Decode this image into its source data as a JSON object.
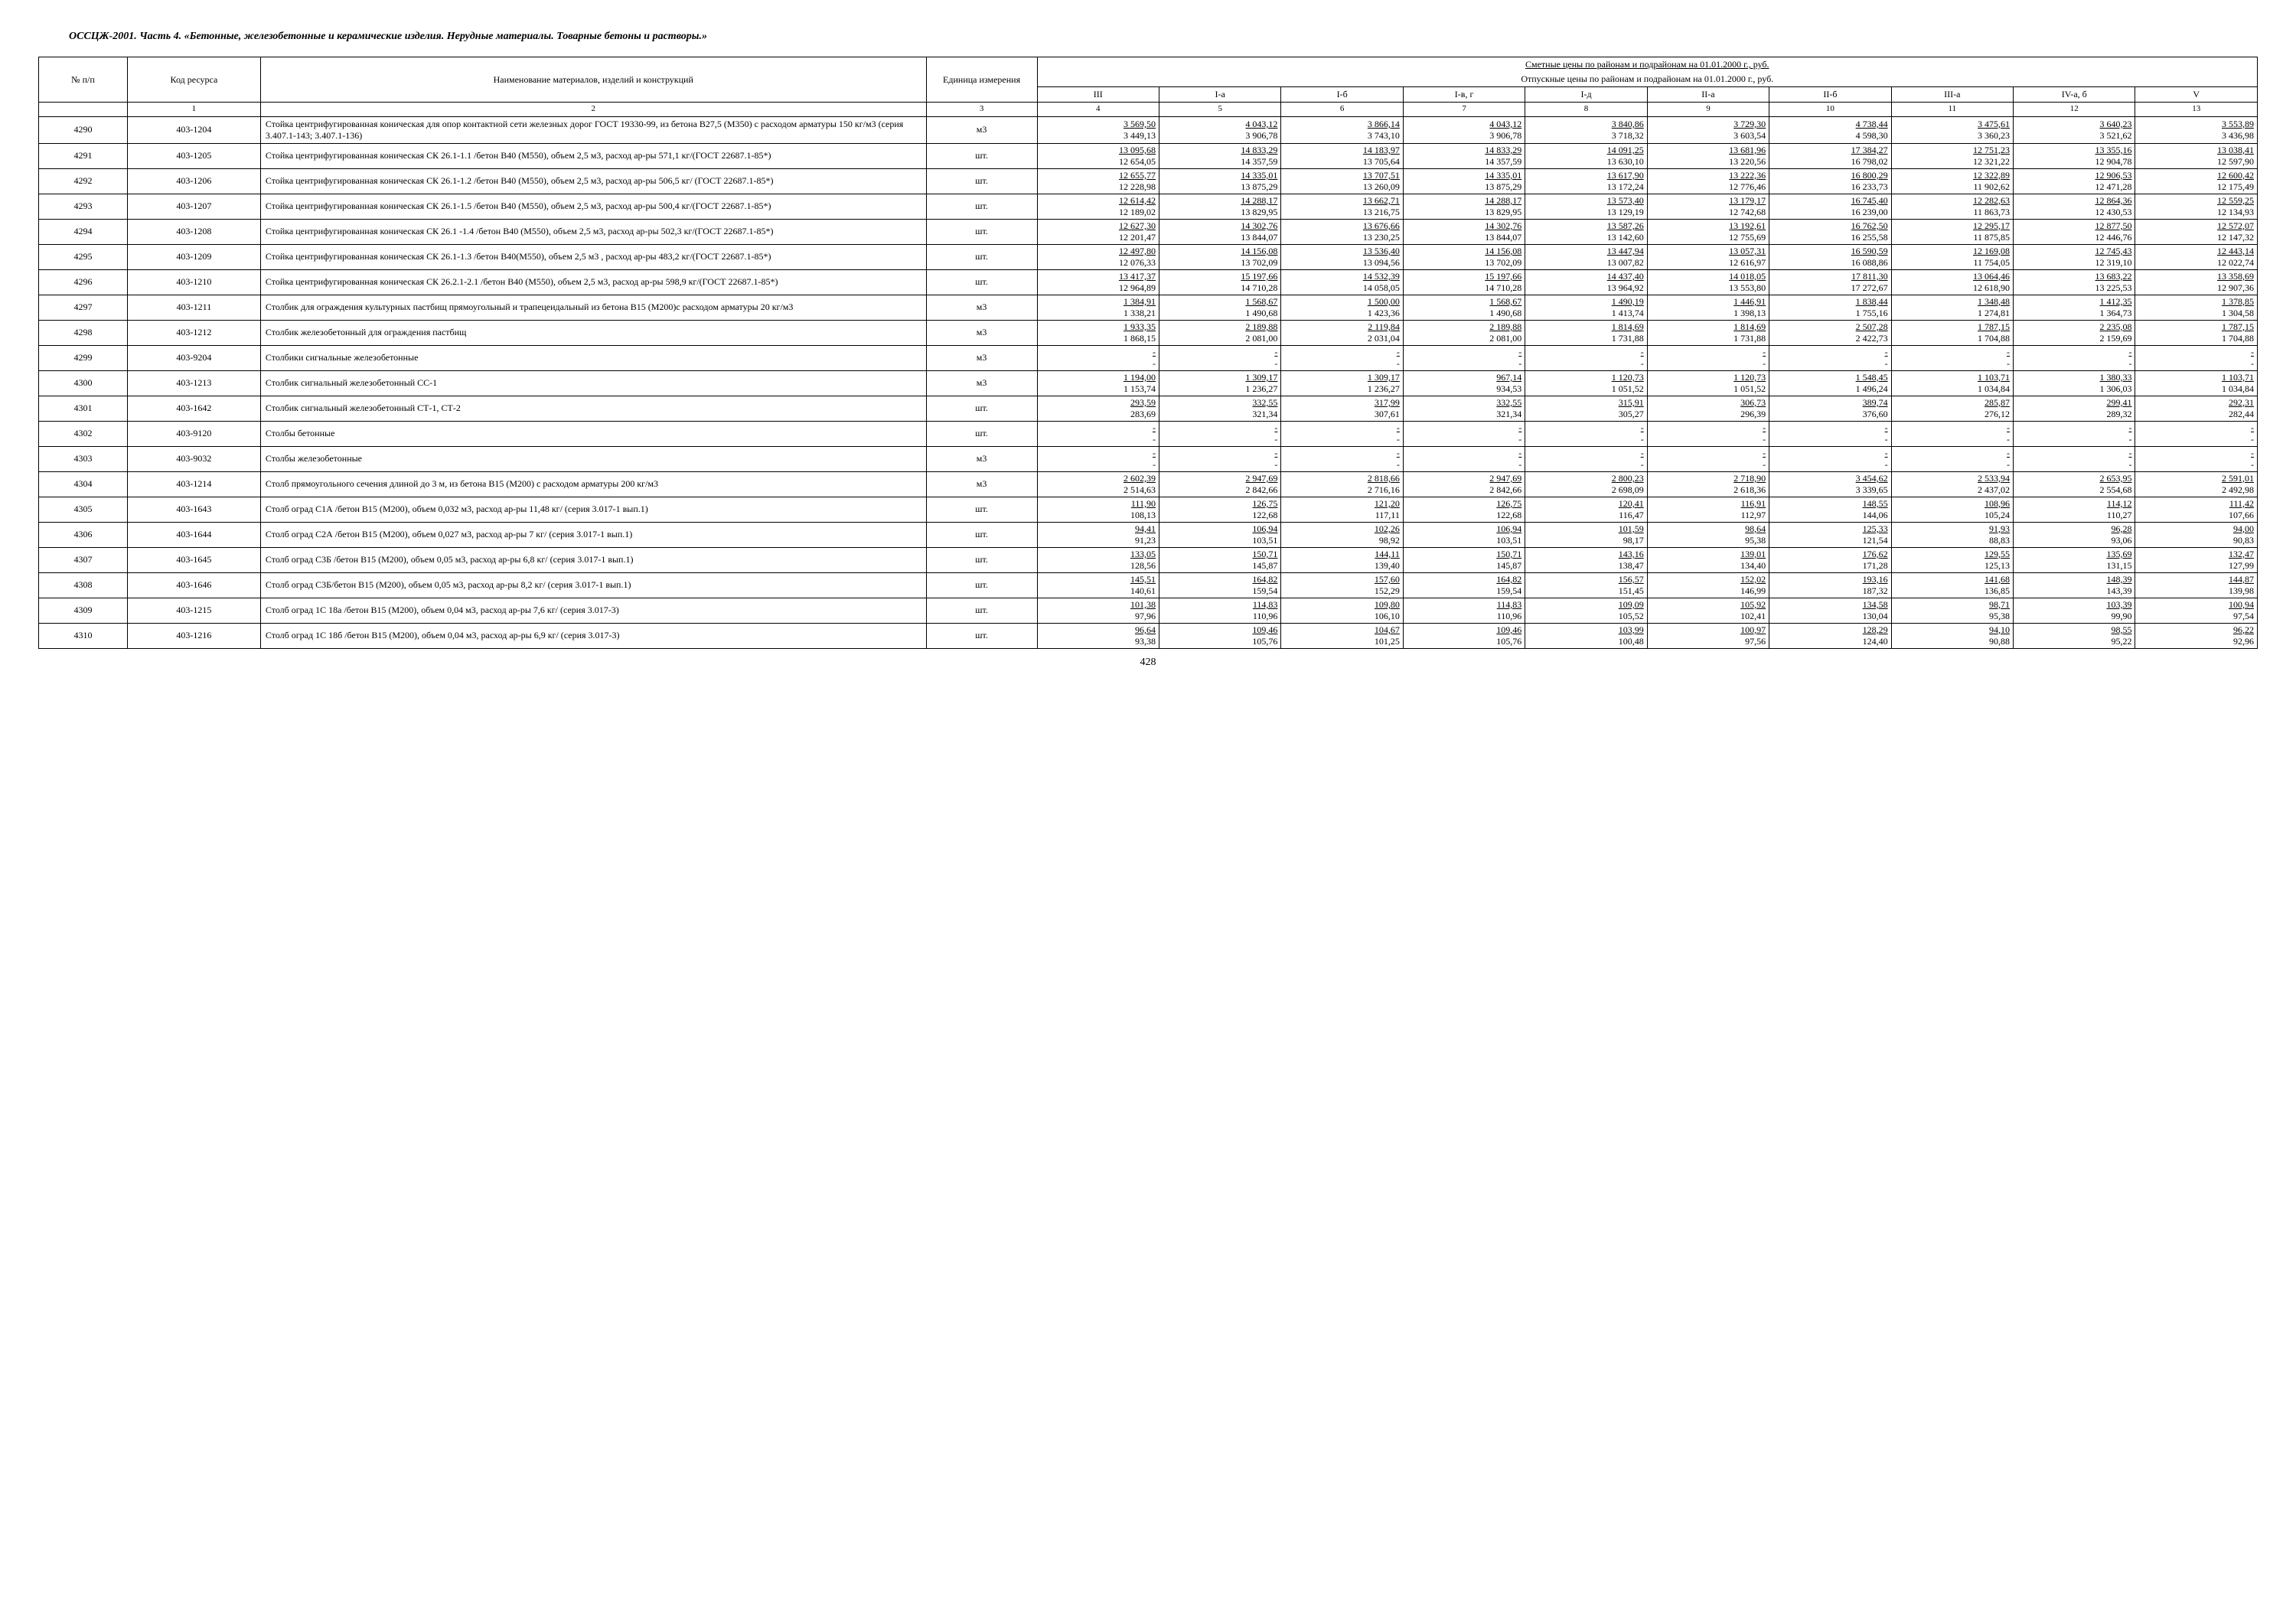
{
  "doc_title": "ОССЦЖ-2001. Часть 4. «Бетонные, железобетонные и керамические изделия. Нерудные материалы. Товарные бетоны и растворы.»",
  "header": {
    "col_num": "№ п/п",
    "col_code": "Код ресурса",
    "col_name": "Наименование материалов, изделий и конструкций",
    "col_unit": "Единица измерения",
    "prices_line1": "Сметные цены по районам и подрайонам на 01.01.2000 г., руб.",
    "prices_line2": "Отпускные цены по районам и подрайонам на 01.01.2000 г., руб.",
    "regions": [
      "III",
      "I-а",
      "I-б",
      "I-в, г",
      "I-д",
      "II-а",
      "II-б",
      "III-а",
      "IV-а, б",
      "V"
    ],
    "col_index": [
      "1",
      "2",
      "3",
      "4",
      "5",
      "6",
      "7",
      "8",
      "9",
      "10",
      "11",
      "12",
      "13"
    ]
  },
  "page_number": "428",
  "rows": [
    {
      "n": "4290",
      "code": "403-1204",
      "name": "Стойка центрифугированная коническая для опор контактной сети железных дорог ГОСТ 19330-99, из бетона В27,5 (М350) с расходом арматуры 150 кг/м3 (серия 3.407.1-143; 3.407.1-136)",
      "unit": "м3",
      "p": [
        [
          "3 569,50",
          "3 449,13"
        ],
        [
          "4 043,12",
          "3 906,78"
        ],
        [
          "3 866,14",
          "3 743,10"
        ],
        [
          "4 043,12",
          "3 906,78"
        ],
        [
          "3 840,86",
          "3 718,32"
        ],
        [
          "3 729,30",
          "3 603,54"
        ],
        [
          "4 738,44",
          "4 598,30"
        ],
        [
          "3 475,61",
          "3 360,23"
        ],
        [
          "3 640,23",
          "3 521,62"
        ],
        [
          "3 553,89",
          "3 436,98"
        ]
      ]
    },
    {
      "n": "4291",
      "code": "403-1205",
      "name": "Стойка центрифугированная коническая СК 26.1-1.1 /бетон В40 (М550), объем 2,5 м3, расход ар-ры 571,1 кг/(ГОСТ 22687.1-85*)",
      "unit": "шт.",
      "p": [
        [
          "13 095,68",
          "12 654,05"
        ],
        [
          "14 833,29",
          "14 357,59"
        ],
        [
          "14 183,97",
          "13 705,64"
        ],
        [
          "14 833,29",
          "14 357,59"
        ],
        [
          "14 091,25",
          "13 630,10"
        ],
        [
          "13 681,96",
          "13 220,56"
        ],
        [
          "17 384,27",
          "16 798,02"
        ],
        [
          "12 751,23",
          "12 321,22"
        ],
        [
          "13 355,16",
          "12 904,78"
        ],
        [
          "13 038,41",
          "12 597,90"
        ]
      ]
    },
    {
      "n": "4292",
      "code": "403-1206",
      "name": "Стойка центрифугированная коническая СК 26.1-1.2 /бетон В40 (М550), объем 2,5 м3, расход ар-ры 506,5 кг/ (ГОСТ 22687.1-85*)",
      "unit": "шт.",
      "p": [
        [
          "12 655,77",
          "12 228,98"
        ],
        [
          "14 335,01",
          "13 875,29"
        ],
        [
          "13 707,51",
          "13 260,09"
        ],
        [
          "14 335,01",
          "13 875,29"
        ],
        [
          "13 617,90",
          "13 172,24"
        ],
        [
          "13 222,36",
          "12 776,46"
        ],
        [
          "16 800,29",
          "16 233,73"
        ],
        [
          "12 322,89",
          "11 902,62"
        ],
        [
          "12 906,53",
          "12 471,28"
        ],
        [
          "12 600,42",
          "12 175,49"
        ]
      ]
    },
    {
      "n": "4293",
      "code": "403-1207",
      "name": "Стойка центрифугированная коническая СК 26.1-1.5 /бетон В40 (М550), объем 2,5 м3, расход ар-ры 500,4 кг/(ГОСТ 22687.1-85*)",
      "unit": "шт.",
      "p": [
        [
          "12 614,42",
          "12 189,02"
        ],
        [
          "14 288,17",
          "13 829,95"
        ],
        [
          "13 662,71",
          "13 216,75"
        ],
        [
          "14 288,17",
          "13 829,95"
        ],
        [
          "13 573,40",
          "13 129,19"
        ],
        [
          "13 179,17",
          "12 742,68"
        ],
        [
          "16 745,40",
          "16 239,00"
        ],
        [
          "12 282,63",
          "11 863,73"
        ],
        [
          "12 864,36",
          "12 430,53"
        ],
        [
          "12 559,25",
          "12 134,93"
        ]
      ]
    },
    {
      "n": "4294",
      "code": "403-1208",
      "name": "Стойка центрифугированная коническая СК 26.1 -1.4 /бетон В40 (М550), объем 2,5 м3, расход ар-ры 502,3 кг/(ГОСТ 22687.1-85*)",
      "unit": "шт.",
      "p": [
        [
          "12 627,30",
          "12 201,47"
        ],
        [
          "14 302,76",
          "13 844,07"
        ],
        [
          "13 676,66",
          "13 230,25"
        ],
        [
          "14 302,76",
          "13 844,07"
        ],
        [
          "13 587,26",
          "13 142,60"
        ],
        [
          "13 192,61",
          "12 755,69"
        ],
        [
          "16 762,50",
          "16 255,58"
        ],
        [
          "12 295,17",
          "11 875,85"
        ],
        [
          "12 877,50",
          "12 446,76"
        ],
        [
          "12 572,07",
          "12 147,32"
        ]
      ]
    },
    {
      "n": "4295",
      "code": "403-1209",
      "name": "Стойка центрифугированная коническая СК 26.1-1.3 /бетон В40(М550), объем 2,5 м3 , расход ар-ры 483,2 кг/(ГОСТ 22687.1-85*)",
      "unit": "шт.",
      "p": [
        [
          "12 497,80",
          "12 076,33"
        ],
        [
          "14 156,08",
          "13 702,09"
        ],
        [
          "13 536,40",
          "13 094,56"
        ],
        [
          "14 156,08",
          "13 702,09"
        ],
        [
          "13 447,94",
          "13 007,82"
        ],
        [
          "13 057,31",
          "12 616,97"
        ],
        [
          "16 590,59",
          "16 088,86"
        ],
        [
          "12 169,08",
          "11 754,05"
        ],
        [
          "12 745,43",
          "12 319,10"
        ],
        [
          "12 443,14",
          "12 022,74"
        ]
      ]
    },
    {
      "n": "4296",
      "code": "403-1210",
      "name": "Стойка центрифугированная коническая СК 26.2.1-2.1 /бетон В40 (М550), объем 2,5 м3, расход ар-ры 598,9 кг/(ГОСТ 22687.1-85*)",
      "unit": "шт.",
      "p": [
        [
          "13 417,37",
          "12 964,89"
        ],
        [
          "15 197,66",
          "14 710,28"
        ],
        [
          "14 532,39",
          "14 058,05"
        ],
        [
          "15 197,66",
          "14 710,28"
        ],
        [
          "14 437,40",
          "13 964,92"
        ],
        [
          "14 018,05",
          "13 553,80"
        ],
        [
          "17 811,30",
          "17 272,67"
        ],
        [
          "13 064,46",
          "12 618,90"
        ],
        [
          "13 683,22",
          "13 225,53"
        ],
        [
          "13 358,69",
          "12 907,36"
        ]
      ]
    },
    {
      "n": "4297",
      "code": "403-1211",
      "name": "Столбик для ограждения культурных пастбищ прямоугольный и трапецеидальный из бетона В15 (М200)с расходом арматуры 20 кг/м3",
      "unit": "м3",
      "p": [
        [
          "1 384,91",
          "1 338,21"
        ],
        [
          "1 568,67",
          "1 490,68"
        ],
        [
          "1 500,00",
          "1 423,36"
        ],
        [
          "1 568,67",
          "1 490,68"
        ],
        [
          "1 490,19",
          "1 413,74"
        ],
        [
          "1 446,91",
          "1 398,13"
        ],
        [
          "1 838,44",
          "1 755,16"
        ],
        [
          "1 348,48",
          "1 274,81"
        ],
        [
          "1 412,35",
          "1 364,73"
        ],
        [
          "1 378,85",
          "1 304,58"
        ]
      ]
    },
    {
      "n": "4298",
      "code": "403-1212",
      "name": "Столбик железобетонный для ограждения пастбищ",
      "unit": "м3",
      "p": [
        [
          "1 933,35",
          "1 868,15"
        ],
        [
          "2 189,88",
          "2 081,00"
        ],
        [
          "2 119,84",
          "2 031,04"
        ],
        [
          "2 189,88",
          "2 081,00"
        ],
        [
          "1 814,69",
          "1 731,88"
        ],
        [
          "1 814,69",
          "1 731,88"
        ],
        [
          "2 507,28",
          "2 422,73"
        ],
        [
          "1 787,15",
          "1 704,88"
        ],
        [
          "2 235,08",
          "2 159,69"
        ],
        [
          "1 787,15",
          "1 704,88"
        ]
      ]
    },
    {
      "n": "4299",
      "code": "403-9204",
      "name": "Столбики сигнальные железобетонные",
      "unit": "м3",
      "p": [
        [
          "-",
          "-"
        ],
        [
          "-",
          "-"
        ],
        [
          "-",
          "-"
        ],
        [
          "-",
          "-"
        ],
        [
          "-",
          "-"
        ],
        [
          "-",
          "-"
        ],
        [
          "-",
          "-"
        ],
        [
          "-",
          "-"
        ],
        [
          "-",
          "-"
        ],
        [
          "-",
          "-"
        ]
      ]
    },
    {
      "n": "4300",
      "code": "403-1213",
      "name": "Столбик сигнальный железобетонный СС-1",
      "unit": "м3",
      "p": [
        [
          "1 194,00",
          "1 153,74"
        ],
        [
          "1 309,17",
          "1 236,27"
        ],
        [
          "1 309,17",
          "1 236,27"
        ],
        [
          "967,14",
          "934,53"
        ],
        [
          "1 120,73",
          "1 051,52"
        ],
        [
          "1 120,73",
          "1 051,52"
        ],
        [
          "1 548,45",
          "1 496,24"
        ],
        [
          "1 103,71",
          "1 034,84"
        ],
        [
          "1 380,33",
          "1 306,03"
        ],
        [
          "1 103,71",
          "1 034,84"
        ]
      ]
    },
    {
      "n": "4301",
      "code": "403-1642",
      "name": "Столбик сигнальный железобетонный СТ-1, СТ-2",
      "unit": "шт.",
      "p": [
        [
          "293,59",
          "283,69"
        ],
        [
          "332,55",
          "321,34"
        ],
        [
          "317,99",
          "307,61"
        ],
        [
          "332,55",
          "321,34"
        ],
        [
          "315,91",
          "305,27"
        ],
        [
          "306,73",
          "296,39"
        ],
        [
          "389,74",
          "376,60"
        ],
        [
          "285,87",
          "276,12"
        ],
        [
          "299,41",
          "289,32"
        ],
        [
          "292,31",
          "282,44"
        ]
      ]
    },
    {
      "n": "4302",
      "code": "403-9120",
      "name": "Столбы бетонные",
      "unit": "шт.",
      "p": [
        [
          "-",
          "-"
        ],
        [
          "-",
          "-"
        ],
        [
          "-",
          "-"
        ],
        [
          "-",
          "-"
        ],
        [
          "-",
          "-"
        ],
        [
          "-",
          "-"
        ],
        [
          "-",
          "-"
        ],
        [
          "-",
          "-"
        ],
        [
          "-",
          "-"
        ],
        [
          "-",
          "-"
        ]
      ]
    },
    {
      "n": "4303",
      "code": "403-9032",
      "name": "Столбы железобетонные",
      "unit": "м3",
      "p": [
        [
          "-",
          "-"
        ],
        [
          "-",
          "-"
        ],
        [
          "-",
          "-"
        ],
        [
          "-",
          "-"
        ],
        [
          "-",
          "-"
        ],
        [
          "-",
          "-"
        ],
        [
          "-",
          "-"
        ],
        [
          "-",
          "-"
        ],
        [
          "-",
          "-"
        ],
        [
          "-",
          "-"
        ]
      ]
    },
    {
      "n": "4304",
      "code": "403-1214",
      "name": "Столб прямоугольного сечения длиной до 3 м, из бетона В15 (М200) с расходом арматуры 200 кг/м3",
      "unit": "м3",
      "p": [
        [
          "2 602,39",
          "2 514,63"
        ],
        [
          "2 947,69",
          "2 842,66"
        ],
        [
          "2 818,66",
          "2 716,16"
        ],
        [
          "2 947,69",
          "2 842,66"
        ],
        [
          "2 800,23",
          "2 698,09"
        ],
        [
          "2 718,90",
          "2 618,36"
        ],
        [
          "3 454,62",
          "3 339,65"
        ],
        [
          "2 533,94",
          "2 437,02"
        ],
        [
          "2 653,95",
          "2 554,68"
        ],
        [
          "2 591,01",
          "2 492,98"
        ]
      ]
    },
    {
      "n": "4305",
      "code": "403-1643",
      "name": "Столб оград С1А /бетон В15 (М200), объем 0,032 м3, расход ар-ры 11,48 кг/ (серия 3.017-1 вып.1)",
      "unit": "шт.",
      "p": [
        [
          "111,90",
          "108,13"
        ],
        [
          "126,75",
          "122,68"
        ],
        [
          "121,20",
          "117,11"
        ],
        [
          "126,75",
          "122,68"
        ],
        [
          "120,41",
          "116,47"
        ],
        [
          "116,91",
          "112,97"
        ],
        [
          "148,55",
          "144,06"
        ],
        [
          "108,96",
          "105,24"
        ],
        [
          "114,12",
          "110,27"
        ],
        [
          "111,42",
          "107,66"
        ]
      ]
    },
    {
      "n": "4306",
      "code": "403-1644",
      "name": "Столб оград С2А /бетон В15 (М200), объем 0,027 м3, расход ар-ры 7 кг/ (серия 3.017-1 вып.1)",
      "unit": "шт.",
      "p": [
        [
          "94,41",
          "91,23"
        ],
        [
          "106,94",
          "103,51"
        ],
        [
          "102,26",
          "98,92"
        ],
        [
          "106,94",
          "103,51"
        ],
        [
          "101,59",
          "98,17"
        ],
        [
          "98,64",
          "95,38"
        ],
        [
          "125,33",
          "121,54"
        ],
        [
          "91,93",
          "88,83"
        ],
        [
          "96,28",
          "93,06"
        ],
        [
          "94,00",
          "90,83"
        ]
      ]
    },
    {
      "n": "4307",
      "code": "403-1645",
      "name": "Столб оград С3Б /бетон В15 (М200), объем 0,05 м3, расход ар-ры 6,8 кг/ (серия 3.017-1 вып.1)",
      "unit": "шт.",
      "p": [
        [
          "133,05",
          "128,56"
        ],
        [
          "150,71",
          "145,87"
        ],
        [
          "144,11",
          "139,40"
        ],
        [
          "150,71",
          "145,87"
        ],
        [
          "143,16",
          "138,47"
        ],
        [
          "139,01",
          "134,40"
        ],
        [
          "176,62",
          "171,28"
        ],
        [
          "129,55",
          "125,13"
        ],
        [
          "135,69",
          "131,15"
        ],
        [
          "132,47",
          "127,99"
        ]
      ]
    },
    {
      "n": "4308",
      "code": "403-1646",
      "name": "Столб оград С3Б/бетон В15 (М200), объем 0,05 м3, расход ар-ры 8,2 кг/ (серия 3.017-1 вып.1)",
      "unit": "шт.",
      "p": [
        [
          "145,51",
          "140,61"
        ],
        [
          "164,82",
          "159,54"
        ],
        [
          "157,60",
          "152,29"
        ],
        [
          "164,82",
          "159,54"
        ],
        [
          "156,57",
          "151,45"
        ],
        [
          "152,02",
          "146,99"
        ],
        [
          "193,16",
          "187,32"
        ],
        [
          "141,68",
          "136,85"
        ],
        [
          "148,39",
          "143,39"
        ],
        [
          "144,87",
          "139,98"
        ]
      ]
    },
    {
      "n": "4309",
      "code": "403-1215",
      "name": "Столб оград 1С 18а /бетон В15 (М200), объем 0,04 м3, расход ар-ры 7,6 кг/ (серия 3.017-3)",
      "unit": "шт.",
      "p": [
        [
          "101,38",
          "97,96"
        ],
        [
          "114,83",
          "110,96"
        ],
        [
          "109,80",
          "106,10"
        ],
        [
          "114,83",
          "110,96"
        ],
        [
          "109,09",
          "105,52"
        ],
        [
          "105,92",
          "102,41"
        ],
        [
          "134,58",
          "130,04"
        ],
        [
          "98,71",
          "95,38"
        ],
        [
          "103,39",
          "99,90"
        ],
        [
          "100,94",
          "97,54"
        ]
      ]
    },
    {
      "n": "4310",
      "code": "403-1216",
      "name": "Столб оград 1С 18б /бетон В15 (М200), объем 0,04 м3, расход ар-ры 6,9 кг/ (серия 3.017-3)",
      "unit": "шт.",
      "p": [
        [
          "96,64",
          "93,38"
        ],
        [
          "109,46",
          "105,76"
        ],
        [
          "104,67",
          "101,25"
        ],
        [
          "109,46",
          "105,76"
        ],
        [
          "103,99",
          "100,48"
        ],
        [
          "100,97",
          "97,56"
        ],
        [
          "128,29",
          "124,40"
        ],
        [
          "94,10",
          "90,88"
        ],
        [
          "98,55",
          "95,22"
        ],
        [
          "96,22",
          "92,96"
        ]
      ]
    }
  ]
}
